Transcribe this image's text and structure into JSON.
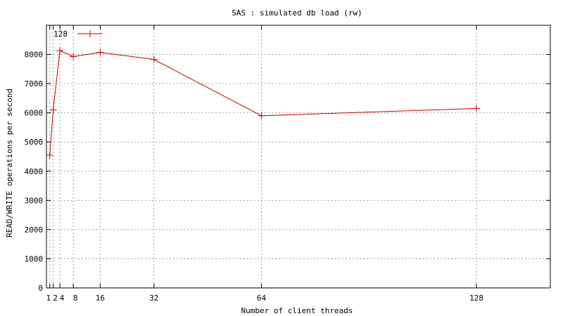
{
  "chart_data": {
    "type": "line",
    "title": "SAS : simulated db load (rw)",
    "xlabel": "Number of client threads",
    "ylabel": "READ/WRITE operations per second",
    "xlim": [
      0,
      150
    ],
    "ylim": [
      0,
      9000
    ],
    "xticks": [
      1,
      2,
      4,
      8,
      16,
      32,
      64,
      128
    ],
    "yticks": [
      0,
      1000,
      2000,
      3000,
      4000,
      5000,
      6000,
      7000,
      8000
    ],
    "grid": true,
    "legend_position": "top-left",
    "series": [
      {
        "name": "128",
        "color": "#cc0000",
        "marker": "plus",
        "x": [
          1,
          2,
          4,
          8,
          16,
          32,
          64,
          128
        ],
        "y": [
          4550,
          6100,
          8130,
          7930,
          8070,
          7830,
          5900,
          6150
        ]
      }
    ]
  }
}
